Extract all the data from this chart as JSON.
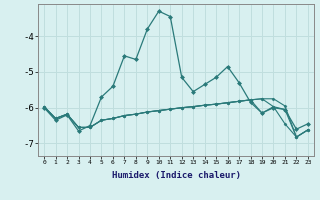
{
  "xlabel": "Humidex (Indice chaleur)",
  "x": [
    0,
    1,
    2,
    3,
    4,
    5,
    6,
    7,
    8,
    9,
    10,
    11,
    12,
    13,
    14,
    15,
    16,
    17,
    18,
    19,
    20,
    21,
    22,
    23
  ],
  "line1": [
    -6.0,
    -6.35,
    -6.2,
    -6.65,
    -6.5,
    -5.7,
    -5.4,
    -4.55,
    -4.65,
    -3.8,
    -3.3,
    -3.45,
    -5.15,
    -5.55,
    -5.35,
    -5.15,
    -4.85,
    -5.3,
    -5.85,
    -6.15,
    -6.0,
    -6.05,
    -6.6,
    -6.45
  ],
  "line2": [
    -5.97,
    -6.3,
    -6.18,
    -6.55,
    -6.55,
    -6.35,
    -6.3,
    -6.22,
    -6.18,
    -6.12,
    -6.08,
    -6.04,
    -6.0,
    -5.97,
    -5.93,
    -5.9,
    -5.86,
    -5.82,
    -5.78,
    -5.75,
    -5.97,
    -6.45,
    -6.82,
    -6.62
  ],
  "line3": [
    -5.97,
    -6.3,
    -6.18,
    -6.55,
    -6.55,
    -6.35,
    -6.3,
    -6.22,
    -6.18,
    -6.12,
    -6.08,
    -6.04,
    -6.0,
    -5.97,
    -5.93,
    -5.9,
    -5.86,
    -5.82,
    -5.78,
    -5.75,
    -5.75,
    -5.95,
    -6.82,
    -6.62
  ],
  "line4": [
    -5.97,
    -6.3,
    -6.18,
    -6.55,
    -6.55,
    -6.35,
    -6.3,
    -6.22,
    -6.18,
    -6.12,
    -6.08,
    -6.04,
    -6.0,
    -5.97,
    -5.93,
    -5.9,
    -5.86,
    -5.82,
    -5.78,
    -6.15,
    -5.97,
    -6.05,
    -6.82,
    -6.62
  ],
  "color": "#2a7a7a",
  "bg_color": "#d8f0f0",
  "grid_color": "#c0dede",
  "ylim": [
    -7.35,
    -3.1
  ],
  "yticks": [
    -7,
    -6,
    -5,
    -4
  ],
  "xlim": [
    -0.5,
    23.5
  ]
}
